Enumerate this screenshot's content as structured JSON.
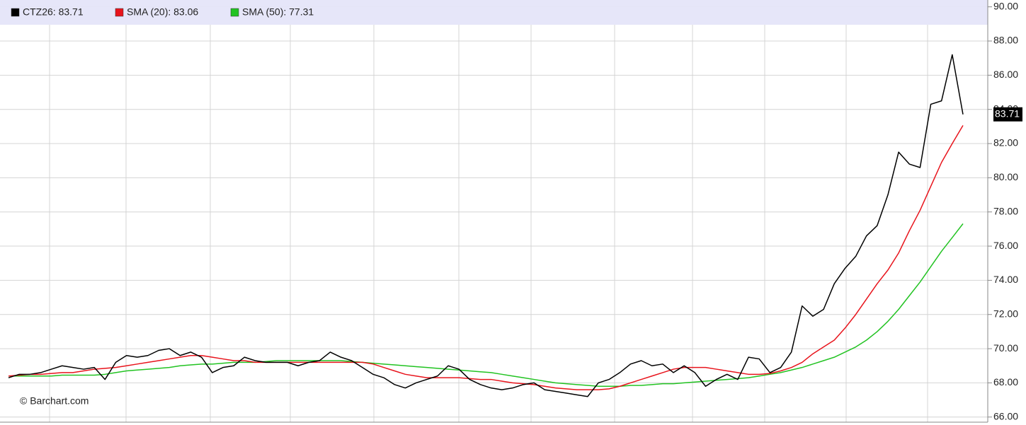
{
  "chart_data": {
    "type": "line",
    "watermark": "© Barchart.com",
    "current_value": 83.71,
    "ylim": [
      65.7,
      90.4
    ],
    "yticks": [
      {
        "value": 66,
        "label": "66.00"
      },
      {
        "value": 68,
        "label": "68.00"
      },
      {
        "value": 70,
        "label": "70.00"
      },
      {
        "value": 72,
        "label": "72.00"
      },
      {
        "value": 74,
        "label": "74.00"
      },
      {
        "value": 76,
        "label": "76.00"
      },
      {
        "value": 78,
        "label": "78.00"
      },
      {
        "value": 80,
        "label": "80.00"
      },
      {
        "value": 82,
        "label": "82.00"
      },
      {
        "value": 84,
        "label": "84.00"
      },
      {
        "value": 86,
        "label": "86.00"
      },
      {
        "value": 88,
        "label": "88.00"
      },
      {
        "value": 90,
        "label": "90.00"
      }
    ],
    "grid": true,
    "series": [
      {
        "name": "CTZ26: 83.71",
        "color": "#000000",
        "values": [
          68.3,
          68.5,
          68.5,
          68.6,
          68.8,
          69.0,
          68.9,
          68.8,
          68.9,
          68.2,
          69.2,
          69.6,
          69.5,
          69.6,
          69.9,
          70.0,
          69.6,
          69.8,
          69.5,
          68.6,
          68.9,
          69.0,
          69.5,
          69.3,
          69.2,
          69.2,
          69.2,
          69.0,
          69.2,
          69.3,
          69.8,
          69.5,
          69.3,
          68.9,
          68.5,
          68.3,
          67.9,
          67.7,
          68.0,
          68.2,
          68.4,
          69.0,
          68.8,
          68.2,
          67.9,
          67.7,
          67.6,
          67.7,
          67.9,
          68.0,
          67.6,
          67.5,
          67.4,
          67.3,
          67.2,
          68.0,
          68.2,
          68.6,
          69.1,
          69.3,
          69.0,
          69.1,
          68.6,
          69.0,
          68.6,
          67.8,
          68.2,
          68.5,
          68.2,
          69.5,
          69.4,
          68.6,
          68.9,
          69.8,
          72.5,
          71.9,
          72.3,
          73.8,
          74.7,
          75.4,
          76.6,
          77.2,
          79.0,
          81.5,
          80.8,
          80.6,
          84.3,
          84.5,
          87.2,
          83.71
        ]
      },
      {
        "name": "SMA (20): 83.06",
        "color": "#e8141c",
        "values": [
          68.4,
          68.45,
          68.5,
          68.5,
          68.55,
          68.6,
          68.6,
          68.7,
          68.8,
          68.85,
          68.9,
          69.0,
          69.1,
          69.2,
          69.3,
          69.4,
          69.5,
          69.6,
          69.6,
          69.5,
          69.4,
          69.3,
          69.3,
          69.2,
          69.2,
          69.2,
          69.2,
          69.2,
          69.2,
          69.2,
          69.2,
          69.2,
          69.2,
          69.2,
          69.1,
          68.9,
          68.7,
          68.5,
          68.4,
          68.3,
          68.3,
          68.3,
          68.3,
          68.25,
          68.2,
          68.2,
          68.1,
          68.0,
          67.95,
          67.9,
          67.8,
          67.7,
          67.65,
          67.6,
          67.6,
          67.6,
          67.65,
          67.8,
          68.0,
          68.2,
          68.4,
          68.6,
          68.8,
          68.9,
          68.9,
          68.9,
          68.8,
          68.7,
          68.6,
          68.5,
          68.5,
          68.55,
          68.7,
          68.9,
          69.2,
          69.7,
          70.1,
          70.5,
          71.2,
          72.0,
          72.9,
          73.8,
          74.6,
          75.6,
          76.9,
          78.1,
          79.5,
          80.9,
          82.0,
          83.06
        ]
      },
      {
        "name": "SMA (50): 77.31",
        "color": "#22c322",
        "values": [
          68.4,
          68.4,
          68.4,
          68.4,
          68.4,
          68.45,
          68.45,
          68.45,
          68.45,
          68.5,
          68.6,
          68.7,
          68.75,
          68.8,
          68.85,
          68.9,
          69.0,
          69.05,
          69.1,
          69.1,
          69.15,
          69.2,
          69.2,
          69.2,
          69.25,
          69.3,
          69.3,
          69.3,
          69.3,
          69.3,
          69.3,
          69.3,
          69.25,
          69.2,
          69.15,
          69.1,
          69.05,
          69.0,
          68.95,
          68.9,
          68.85,
          68.8,
          68.75,
          68.7,
          68.65,
          68.6,
          68.5,
          68.4,
          68.3,
          68.2,
          68.1,
          68.0,
          67.95,
          67.9,
          67.85,
          67.8,
          67.8,
          67.8,
          67.85,
          67.85,
          67.9,
          67.95,
          67.95,
          68.0,
          68.05,
          68.1,
          68.15,
          68.2,
          68.25,
          68.3,
          68.4,
          68.5,
          68.6,
          68.75,
          68.9,
          69.1,
          69.3,
          69.5,
          69.8,
          70.1,
          70.5,
          71.0,
          71.6,
          72.3,
          73.1,
          73.9,
          74.8,
          75.7,
          76.5,
          77.31
        ]
      }
    ]
  }
}
